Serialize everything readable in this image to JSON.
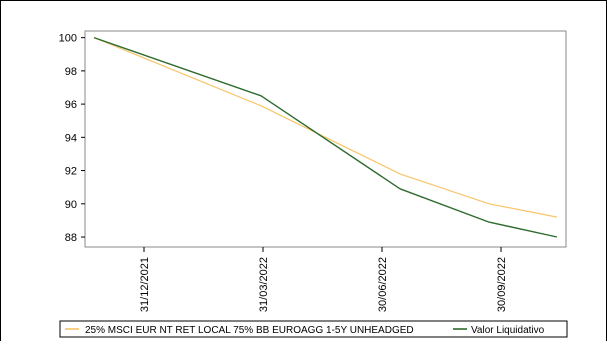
{
  "chart_data": {
    "type": "line",
    "x": [
      "31/12/2021",
      "31/03/2022",
      "30/06/2022",
      "30/09/2022",
      "31/12/2022"
    ],
    "x_tick_labels": [
      "31/12/2021",
      "31/03/2022",
      "30/06/2022",
      "30/09/2022"
    ],
    "y_ticks": [
      100,
      98,
      96,
      94,
      92,
      90,
      88
    ],
    "ylim": [
      87.4,
      100.4
    ],
    "grid": false,
    "legend_position": "bottom",
    "series": [
      {
        "name": "25% MSCI EUR NT RET LOCAL 75% BB EUROAGG 1-5Y UNHEADGED",
        "color": "#f7c56a",
        "values": [
          100,
          95.9,
          91.8,
          90.0,
          89.2
        ]
      },
      {
        "name": "Valor Liquidativo",
        "color": "#2f6b2f",
        "values": [
          100,
          96.5,
          90.9,
          88.9,
          88.0
        ]
      }
    ]
  }
}
